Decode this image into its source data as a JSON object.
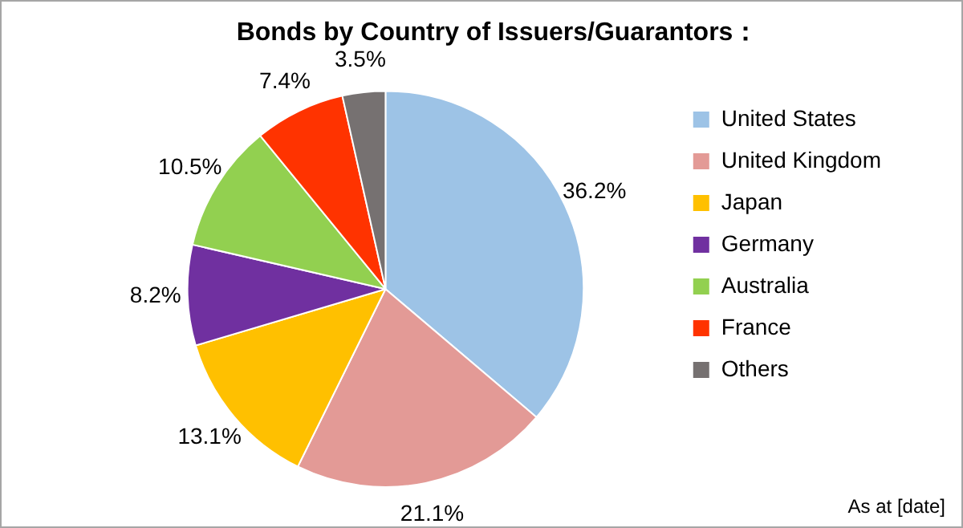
{
  "chart_data": {
    "type": "pie",
    "title": "Bonds by Country of Issuers/Guarantors：",
    "categories": [
      "United States",
      "United Kingdom",
      "Japan",
      "Germany",
      "Australia",
      "France",
      "Others"
    ],
    "values": [
      36.2,
      21.1,
      13.1,
      8.2,
      10.5,
      7.4,
      3.5
    ],
    "colors": [
      "#9dc3e6",
      "#e39a96",
      "#ffc000",
      "#7030a0",
      "#92d050",
      "#ff3300",
      "#767171"
    ],
    "value_labels": [
      "36.2%",
      "21.1%",
      "13.1%",
      "8.2%",
      "10.5%",
      "7.4%",
      "3.5%"
    ],
    "legend": "right",
    "annotations": [
      "As at [date]"
    ]
  }
}
